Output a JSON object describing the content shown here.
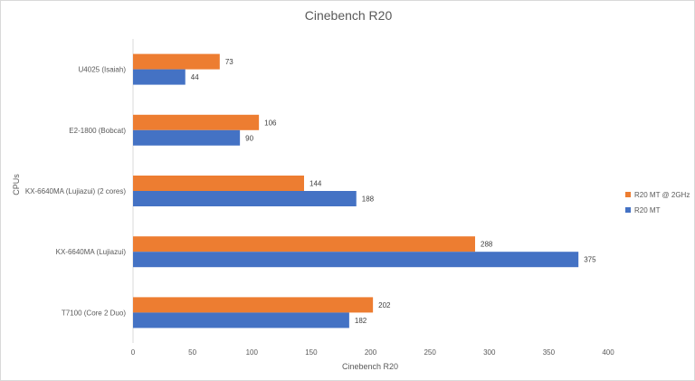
{
  "chart_data": {
    "type": "bar",
    "orientation": "horizontal",
    "title": "Cinebench R20",
    "xlabel": "Cinebench R20",
    "ylabel": "CPUs",
    "xlim": [
      0,
      400
    ],
    "xticks": [
      0,
      50,
      100,
      150,
      200,
      250,
      300,
      350,
      400
    ],
    "categories": [
      "U4025 (Isaiah)",
      "E2-1800 (Bobcat)",
      "KX-6640MA (Lujiazui) (2 cores)",
      "KX-6640MA (Lujiazui)",
      "T7100 (Core 2 Duo)"
    ],
    "series": [
      {
        "name": "R20 MT @ 2GHz",
        "color": "#ed7d31",
        "values": [
          73,
          106,
          144,
          288,
          202
        ]
      },
      {
        "name": "R20 MT",
        "color": "#4472c4",
        "values": [
          44,
          90,
          188,
          375,
          182
        ]
      }
    ],
    "grid": false,
    "legend": "right"
  }
}
